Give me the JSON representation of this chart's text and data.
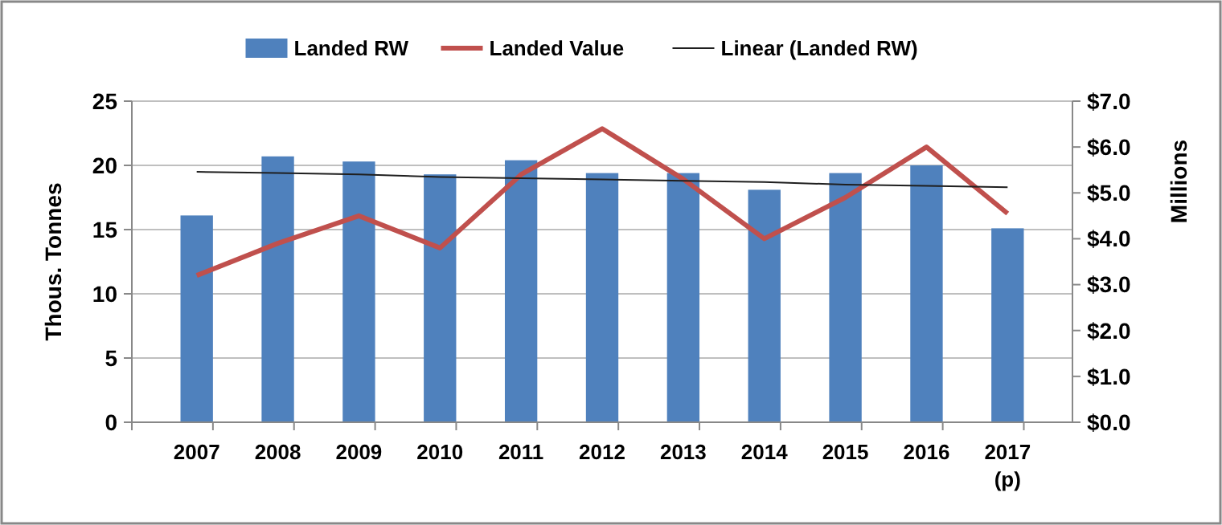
{
  "chart_data": {
    "type": "bar",
    "categories": [
      "2007",
      "2008",
      "2009",
      "2010",
      "2011",
      "2012",
      "2013",
      "2014",
      "2015",
      "2016",
      "2017\n(p)"
    ],
    "series": [
      {
        "name": "Landed RW",
        "color": "#4f81bd",
        "values": [
          16.1,
          20.7,
          20.3,
          19.3,
          20.4,
          19.4,
          19.4,
          18.1,
          19.4,
          20.0,
          15.1
        ]
      },
      {
        "name": "Landed Value",
        "type": "line",
        "axis": "y2",
        "color": "#c0504d",
        "values": [
          3.2,
          3.9,
          4.5,
          3.8,
          5.4,
          6.4,
          5.3,
          4.0,
          4.9,
          6.0,
          4.55
        ]
      },
      {
        "name": "Linear (Landed RW)",
        "type": "line",
        "color": "#1f1f1f",
        "values": [
          19.5,
          19.4,
          19.3,
          19.1,
          19.0,
          18.9,
          18.8,
          18.7,
          18.5,
          18.4,
          18.3
        ]
      }
    ],
    "ylabel": "Thous. Tonnes",
    "y2label": "Millions",
    "ylim": [
      0,
      25
    ],
    "yticks": [
      0,
      5,
      10,
      15,
      20,
      25
    ],
    "y2lim": [
      0,
      7
    ],
    "y2ticks": [
      {
        "value": 0,
        "label": "$0.0"
      },
      {
        "value": 1,
        "label": "$1.0"
      },
      {
        "value": 2,
        "label": "$2.0"
      },
      {
        "value": 3,
        "label": "$3.0"
      },
      {
        "value": 4,
        "label": "$4.0"
      },
      {
        "value": 5,
        "label": "$5.0"
      },
      {
        "value": 6,
        "label": "$6.0"
      },
      {
        "value": 7,
        "label": "$7.0"
      }
    ],
    "grid": "y",
    "legend": "top"
  }
}
